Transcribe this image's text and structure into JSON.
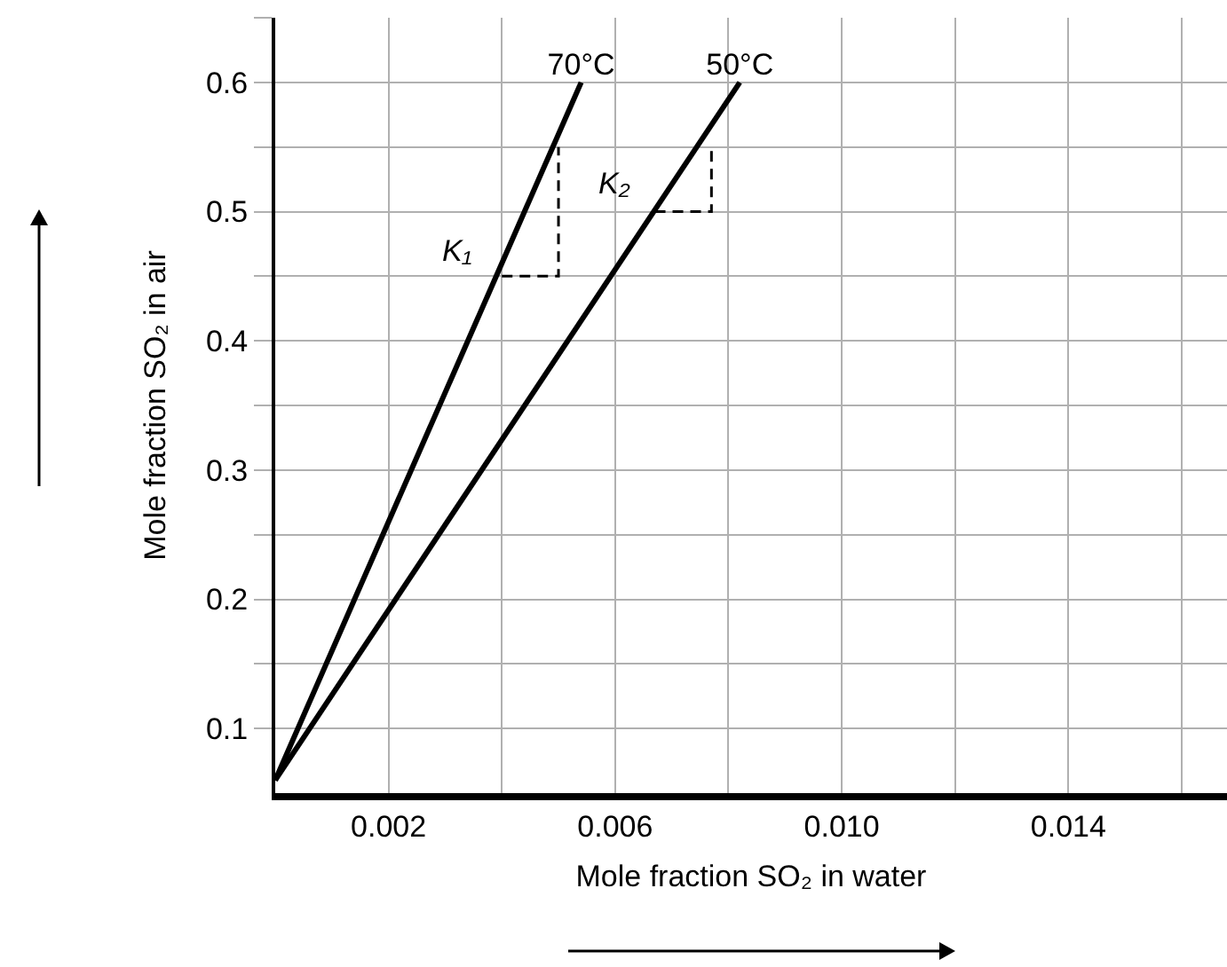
{
  "chart_data": {
    "type": "line",
    "xlabel": "Mole fraction SO₂ in water",
    "ylabel": "Mole fraction SO₂ in air",
    "xlim": [
      0,
      0.0168
    ],
    "ylim": [
      0.05,
      0.65
    ],
    "xticks": [
      0.002,
      {
        "value": 0.004,
        "label": null
      },
      0.006,
      {
        "value": 0.008,
        "label": null
      },
      {
        "value": 0.01,
        "label": "0.010"
      },
      {
        "value": 0.012,
        "label": null
      },
      0.014,
      {
        "value": 0.016,
        "label": null
      }
    ],
    "yticks": [
      {
        "value": 0.1,
        "label": "0.1"
      },
      {
        "value": 0.15,
        "label": null
      },
      {
        "value": 0.2,
        "label": "0.2"
      },
      {
        "value": 0.25,
        "label": null
      },
      {
        "value": 0.3,
        "label": "0.3"
      },
      {
        "value": 0.35,
        "label": null
      },
      {
        "value": 0.4,
        "label": "0.4"
      },
      {
        "value": 0.45,
        "label": null
      },
      {
        "value": 0.5,
        "label": "0.5"
      },
      {
        "value": 0.55,
        "label": null
      },
      {
        "value": 0.6,
        "label": "0.6"
      },
      {
        "value": 0.65,
        "label": null
      }
    ],
    "grid": true,
    "legend": false,
    "marker": "none",
    "line_style": "solid",
    "series": [
      {
        "name": "70°C",
        "color": "#000000",
        "x": [
          0,
          0.0054
        ],
        "values": [
          0.06,
          0.6
        ]
      },
      {
        "name": "50°C",
        "color": "#000000",
        "x": [
          0,
          0.0082
        ],
        "values": [
          0.06,
          0.6
        ]
      },
      {
        "color": "#000000",
        "line_style": "dashed",
        "x": [
          0.004,
          0.005,
          0.005
        ],
        "values": [
          0.45,
          0.45,
          0.55
        ]
      },
      {
        "color": "#000000",
        "line_style": "dashed",
        "x": [
          0.0067,
          0.0077,
          0.0077
        ],
        "values": [
          0.5,
          0.5,
          0.55
        ]
      }
    ],
    "annotations": [
      "K₁",
      "K₂"
    ]
  }
}
